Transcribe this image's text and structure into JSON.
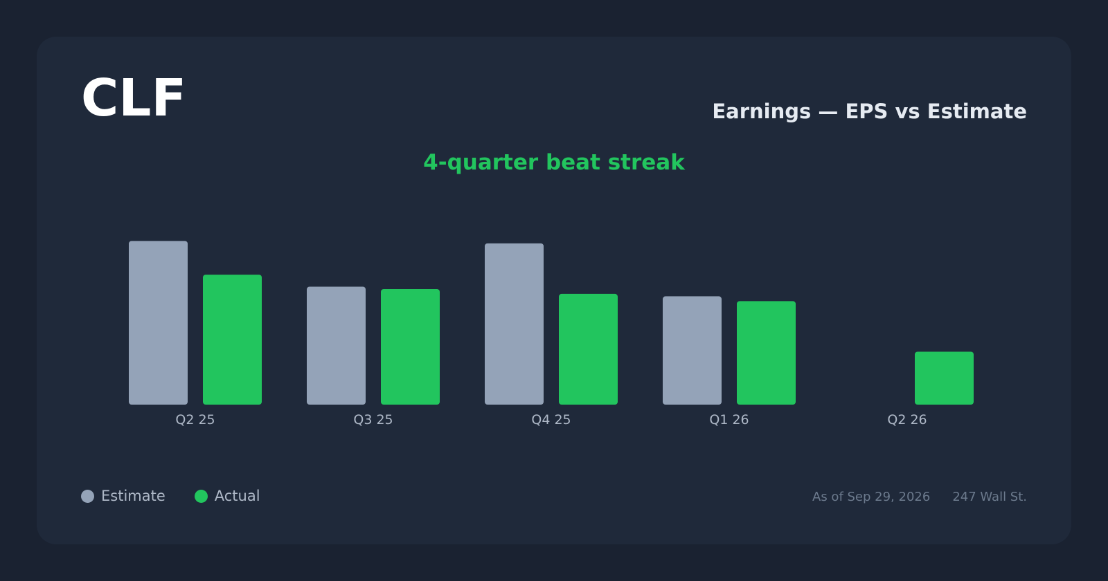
{
  "ticker": "CLF",
  "header": {
    "title": "Earnings — EPS vs Estimate",
    "subtitle": "4-quarter beat streak"
  },
  "legend": [
    {
      "label": "Estimate",
      "color": "#94a3b8"
    },
    {
      "label": "Actual",
      "color": "#22c55e"
    }
  ],
  "footer": {
    "as_of": "As of Sep 29, 2026",
    "source": "247 Wall St."
  },
  "colors": {
    "estimate": "#94a3b8",
    "actual": "#22c55e",
    "subtitle": "#22c55e"
  },
  "chart_data": {
    "type": "bar",
    "categories": [
      "Q2 25",
      "Q3 25",
      "Q4 25",
      "Q1 26",
      "Q2 26"
    ],
    "series": [
      {
        "name": "Estimate",
        "values": [
          -0.68,
          -0.49,
          -0.67,
          -0.45,
          null
        ]
      },
      {
        "name": "Actual",
        "values": [
          -0.54,
          -0.48,
          -0.46,
          -0.43,
          -0.22
        ]
      }
    ],
    "baseline": "bars hang from zero; taller bar = larger loss per share",
    "grid": false,
    "legend_position": "bottom-left"
  }
}
